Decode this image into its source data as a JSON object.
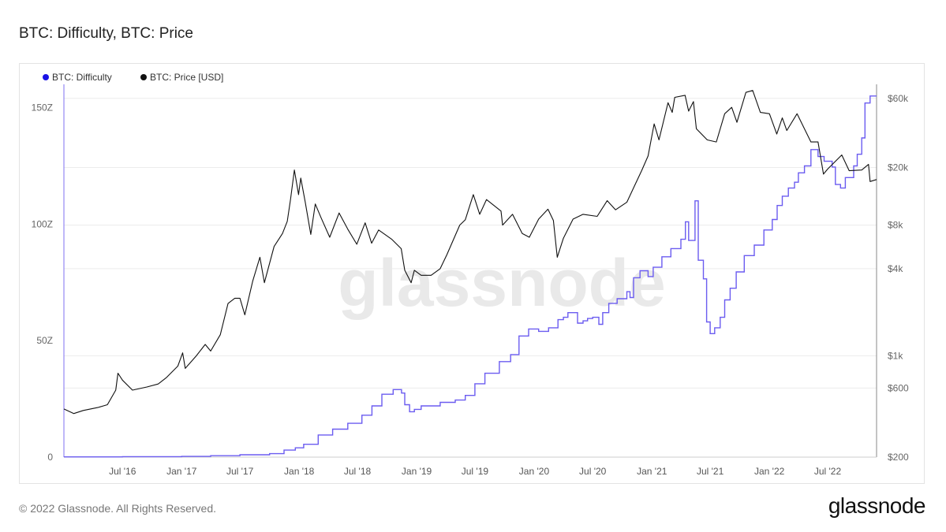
{
  "page": {
    "title": "BTC: Difficulty, BTC: Price",
    "copyright": "© 2022 Glassnode. All Rights Reserved.",
    "brand": "glassnode",
    "watermark": "glassnode"
  },
  "chart_data": {
    "type": "line",
    "title": "BTC: Difficulty, BTC: Price",
    "legend_position": "top-left",
    "grid": true,
    "x_range": [
      "2016-01-01",
      "2022-11-30"
    ],
    "x_ticks": [
      {
        "date": "2016-07-01",
        "label": "Jul '16"
      },
      {
        "date": "2017-01-01",
        "label": "Jan '17"
      },
      {
        "date": "2017-07-01",
        "label": "Jul '17"
      },
      {
        "date": "2018-01-01",
        "label": "Jan '18"
      },
      {
        "date": "2018-07-01",
        "label": "Jul '18"
      },
      {
        "date": "2019-01-01",
        "label": "Jan '19"
      },
      {
        "date": "2019-07-01",
        "label": "Jul '19"
      },
      {
        "date": "2020-01-01",
        "label": "Jan '20"
      },
      {
        "date": "2020-07-01",
        "label": "Jul '20"
      },
      {
        "date": "2021-01-01",
        "label": "Jan '21"
      },
      {
        "date": "2021-07-01",
        "label": "Jul '21"
      },
      {
        "date": "2022-01-01",
        "label": "Jan '22"
      },
      {
        "date": "2022-07-01",
        "label": "Jul '22"
      }
    ],
    "y_left": {
      "scale": "linear",
      "range": [
        0,
        160
      ],
      "unit": "Z",
      "ticks": [
        {
          "value": 0,
          "label": "0"
        },
        {
          "value": 50,
          "label": "50Z"
        },
        {
          "value": 100,
          "label": "100Z"
        },
        {
          "value": 150,
          "label": "150Z"
        }
      ]
    },
    "y_right": {
      "scale": "log",
      "range": [
        200,
        75000
      ],
      "unit": "USD",
      "ticks": [
        {
          "value": 200,
          "label": "$200"
        },
        {
          "value": 600,
          "label": "$600"
        },
        {
          "value": 1000,
          "label": "$1k"
        },
        {
          "value": 4000,
          "label": "$4k"
        },
        {
          "value": 8000,
          "label": "$8k"
        },
        {
          "value": 20000,
          "label": "$20k"
        },
        {
          "value": 60000,
          "label": "$60k"
        }
      ]
    },
    "series": [
      {
        "name": "BTC: Difficulty",
        "color": "#6b5cf0",
        "legend_color": "#1a12e6",
        "axis": "left",
        "points": [
          [
            "2016-01-01",
            0.1
          ],
          [
            "2016-07-01",
            0.2
          ],
          [
            "2017-01-01",
            0.3
          ],
          [
            "2017-04-01",
            0.6
          ],
          [
            "2017-07-01",
            1.0
          ],
          [
            "2017-10-01",
            1.5
          ],
          [
            "2017-11-15",
            3.0
          ],
          [
            "2017-12-20",
            4.0
          ],
          [
            "2018-01-15",
            5.5
          ],
          [
            "2018-03-01",
            9.5
          ],
          [
            "2018-04-15",
            12.0
          ],
          [
            "2018-06-01",
            14.5
          ],
          [
            "2018-07-15",
            18.0
          ],
          [
            "2018-08-15",
            22.0
          ],
          [
            "2018-09-15",
            27.0
          ],
          [
            "2018-10-20",
            29.0
          ],
          [
            "2018-11-15",
            27.5
          ],
          [
            "2018-11-25",
            22.5
          ],
          [
            "2018-12-10",
            19.5
          ],
          [
            "2018-12-25",
            20.5
          ],
          [
            "2019-01-15",
            22.0
          ],
          [
            "2019-03-15",
            23.5
          ],
          [
            "2019-05-01",
            24.5
          ],
          [
            "2019-06-01",
            26.5
          ],
          [
            "2019-07-01",
            31.5
          ],
          [
            "2019-08-01",
            36.0
          ],
          [
            "2019-09-15",
            41.0
          ],
          [
            "2019-10-20",
            44.0
          ],
          [
            "2019-11-15",
            52.0
          ],
          [
            "2019-12-15",
            55.0
          ],
          [
            "2020-01-15",
            54.0
          ],
          [
            "2020-02-15",
            55.5
          ],
          [
            "2020-03-15",
            59.0
          ],
          [
            "2020-04-01",
            60.0
          ],
          [
            "2020-04-15",
            62.0
          ],
          [
            "2020-05-15",
            57.5
          ],
          [
            "2020-06-01",
            58.5
          ],
          [
            "2020-06-15",
            59.5
          ],
          [
            "2020-07-01",
            60.0
          ],
          [
            "2020-07-20",
            57.0
          ],
          [
            "2020-08-01",
            62.0
          ],
          [
            "2020-08-20",
            66.0
          ],
          [
            "2020-09-15",
            68.0
          ],
          [
            "2020-10-15",
            71.0
          ],
          [
            "2020-10-25",
            68.5
          ],
          [
            "2020-11-05",
            77.0
          ],
          [
            "2020-11-25",
            80.0
          ],
          [
            "2020-12-20",
            77.5
          ],
          [
            "2021-01-05",
            81.5
          ],
          [
            "2021-02-01",
            86.0
          ],
          [
            "2021-03-01",
            89.5
          ],
          [
            "2021-04-01",
            93.5
          ],
          [
            "2021-04-15",
            101.0
          ],
          [
            "2021-04-25",
            93.0
          ],
          [
            "2021-05-15",
            110.0
          ],
          [
            "2021-05-25",
            84.5
          ],
          [
            "2021-06-10",
            76.5
          ],
          [
            "2021-06-20",
            58.0
          ],
          [
            "2021-07-01",
            53.0
          ],
          [
            "2021-07-15",
            55.5
          ],
          [
            "2021-08-01",
            60.0
          ],
          [
            "2021-08-15",
            67.5
          ],
          [
            "2021-09-01",
            72.5
          ],
          [
            "2021-09-20",
            79.5
          ],
          [
            "2021-10-15",
            86.5
          ],
          [
            "2021-11-15",
            91.0
          ],
          [
            "2021-12-15",
            97.5
          ],
          [
            "2022-01-10",
            102.0
          ],
          [
            "2022-01-25",
            108.0
          ],
          [
            "2022-02-10",
            112.0
          ],
          [
            "2022-03-01",
            115.5
          ],
          [
            "2022-03-20",
            118.0
          ],
          [
            "2022-04-01",
            122.0
          ],
          [
            "2022-04-20",
            125.0
          ],
          [
            "2022-05-10",
            132.0
          ],
          [
            "2022-06-01",
            129.0
          ],
          [
            "2022-06-20",
            127.0
          ],
          [
            "2022-07-15",
            124.5
          ],
          [
            "2022-07-25",
            117.0
          ],
          [
            "2022-08-10",
            115.5
          ],
          [
            "2022-08-25",
            120.0
          ],
          [
            "2022-09-15",
            120.0
          ],
          [
            "2022-09-20",
            125.0
          ],
          [
            "2022-10-01",
            130.0
          ],
          [
            "2022-10-15",
            137.0
          ],
          [
            "2022-10-25",
            152.0
          ],
          [
            "2022-11-10",
            155.0
          ],
          [
            "2022-11-30",
            155.0
          ]
        ]
      },
      {
        "name": "BTC: Price [USD]",
        "color": "#111111",
        "axis": "right",
        "points": [
          [
            "2016-01-01",
            430
          ],
          [
            "2016-02-01",
            400
          ],
          [
            "2016-03-01",
            420
          ],
          [
            "2016-04-15",
            440
          ],
          [
            "2016-05-15",
            460
          ],
          [
            "2016-06-10",
            580
          ],
          [
            "2016-06-17",
            760
          ],
          [
            "2016-07-01",
            680
          ],
          [
            "2016-08-01",
            580
          ],
          [
            "2016-09-15",
            610
          ],
          [
            "2016-10-20",
            640
          ],
          [
            "2016-11-15",
            710
          ],
          [
            "2016-12-20",
            850
          ],
          [
            "2017-01-04",
            1050
          ],
          [
            "2017-01-12",
            820
          ],
          [
            "2017-02-15",
            1000
          ],
          [
            "2017-03-15",
            1200
          ],
          [
            "2017-04-01",
            1080
          ],
          [
            "2017-05-01",
            1400
          ],
          [
            "2017-05-25",
            2300
          ],
          [
            "2017-06-15",
            2500
          ],
          [
            "2017-07-01",
            2500
          ],
          [
            "2017-07-16",
            1920
          ],
          [
            "2017-08-10",
            3300
          ],
          [
            "2017-09-01",
            4800
          ],
          [
            "2017-09-15",
            3200
          ],
          [
            "2017-10-15",
            5700
          ],
          [
            "2017-11-10",
            7000
          ],
          [
            "2017-11-25",
            8500
          ],
          [
            "2017-12-05",
            12000
          ],
          [
            "2017-12-17",
            19200
          ],
          [
            "2017-12-30",
            13000
          ],
          [
            "2018-01-06",
            16900
          ],
          [
            "2018-01-20",
            11500
          ],
          [
            "2018-02-06",
            6900
          ],
          [
            "2018-02-20",
            11200
          ],
          [
            "2018-03-10",
            9000
          ],
          [
            "2018-04-06",
            6600
          ],
          [
            "2018-05-05",
            9700
          ],
          [
            "2018-06-01",
            7500
          ],
          [
            "2018-06-29",
            5900
          ],
          [
            "2018-07-25",
            8300
          ],
          [
            "2018-08-14",
            6000
          ],
          [
            "2018-09-05",
            7400
          ],
          [
            "2018-10-15",
            6400
          ],
          [
            "2018-11-14",
            5500
          ],
          [
            "2018-11-25",
            3900
          ],
          [
            "2018-12-15",
            3200
          ],
          [
            "2018-12-25",
            3900
          ],
          [
            "2019-01-15",
            3600
          ],
          [
            "2019-02-15",
            3600
          ],
          [
            "2019-03-15",
            4000
          ],
          [
            "2019-04-05",
            5000
          ],
          [
            "2019-05-15",
            8000
          ],
          [
            "2019-06-01",
            8700
          ],
          [
            "2019-06-26",
            13000
          ],
          [
            "2019-07-16",
            9500
          ],
          [
            "2019-08-06",
            12000
          ],
          [
            "2019-09-20",
            10000
          ],
          [
            "2019-09-25",
            8000
          ],
          [
            "2019-10-26",
            9500
          ],
          [
            "2019-11-25",
            7000
          ],
          [
            "2019-12-17",
            6600
          ],
          [
            "2020-01-15",
            8800
          ],
          [
            "2020-02-13",
            10300
          ],
          [
            "2020-03-01",
            8600
          ],
          [
            "2020-03-13",
            4800
          ],
          [
            "2020-04-01",
            6500
          ],
          [
            "2020-05-01",
            8800
          ],
          [
            "2020-06-01",
            9500
          ],
          [
            "2020-07-15",
            9200
          ],
          [
            "2020-08-15",
            11800
          ],
          [
            "2020-09-10",
            10200
          ],
          [
            "2020-10-15",
            11500
          ],
          [
            "2020-11-10",
            15300
          ],
          [
            "2020-11-30",
            19000
          ],
          [
            "2020-12-20",
            24000
          ],
          [
            "2021-01-08",
            40000
          ],
          [
            "2021-01-23",
            31000
          ],
          [
            "2021-02-20",
            56000
          ],
          [
            "2021-03-05",
            48000
          ],
          [
            "2021-03-13",
            61000
          ],
          [
            "2021-04-14",
            63000
          ],
          [
            "2021-04-25",
            49000
          ],
          [
            "2021-05-10",
            57000
          ],
          [
            "2021-05-19",
            37000
          ],
          [
            "2021-06-22",
            31000
          ],
          [
            "2021-07-20",
            30000
          ],
          [
            "2021-08-15",
            47000
          ],
          [
            "2021-09-06",
            52000
          ],
          [
            "2021-09-22",
            41000
          ],
          [
            "2021-10-20",
            66000
          ],
          [
            "2021-11-10",
            68000
          ],
          [
            "2021-12-04",
            48000
          ],
          [
            "2022-01-01",
            47000
          ],
          [
            "2022-01-24",
            34000
          ],
          [
            "2022-02-10",
            44000
          ],
          [
            "2022-02-24",
            36000
          ],
          [
            "2022-03-28",
            47000
          ],
          [
            "2022-05-10",
            30000
          ],
          [
            "2022-06-01",
            30000
          ],
          [
            "2022-06-18",
            18000
          ],
          [
            "2022-07-01",
            19500
          ],
          [
            "2022-08-14",
            24400
          ],
          [
            "2022-09-06",
            19000
          ],
          [
            "2022-10-15",
            19200
          ],
          [
            "2022-11-05",
            21000
          ],
          [
            "2022-11-10",
            16000
          ],
          [
            "2022-11-30",
            16500
          ]
        ]
      }
    ]
  }
}
